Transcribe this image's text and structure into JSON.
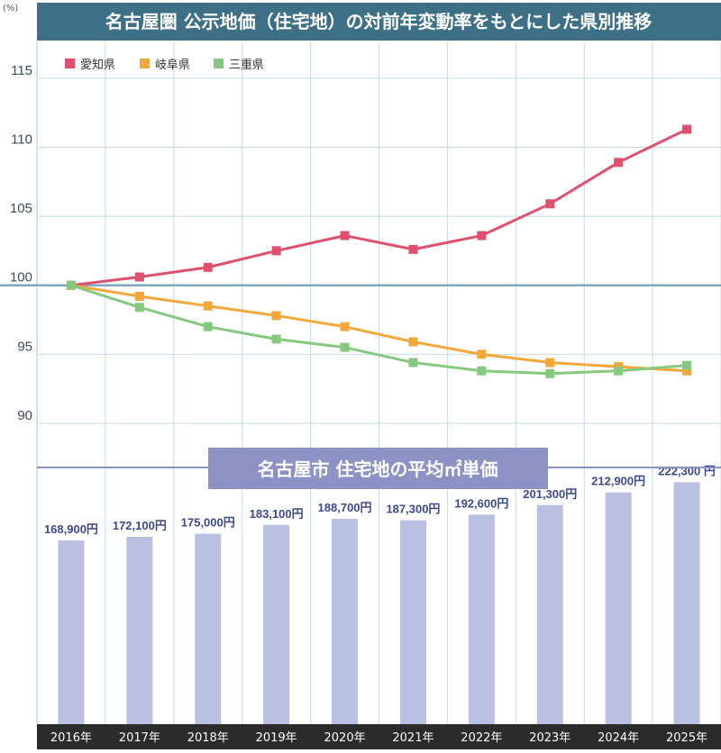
{
  "title": "名古屋圏 公示地価（住宅地）の対前年変動率をもとにした県別推移",
  "unit_label": "(%)",
  "subtitle": "名古屋市 住宅地の平均㎡単価",
  "x_labels": [
    "2016年",
    "2017年",
    "2018年",
    "2019年",
    "2020年",
    "2021年",
    "2022年",
    "2023年",
    "2024年",
    "2025年"
  ],
  "colors": {
    "title_bg": "#3d6f86",
    "subtitle_bg": "#8c93c4",
    "bar": "#b9c0e1",
    "axis_bar": "#2b2b2b",
    "grid_v": "#c5dce3",
    "grid_h": "#c5dce3",
    "baseline": "#7ea8bd",
    "divider": "#8c93c4"
  },
  "chart_data": [
    {
      "type": "line",
      "x": [
        "2016年",
        "2017年",
        "2018年",
        "2019年",
        "2020年",
        "2021年",
        "2022年",
        "2023年",
        "2024年",
        "2025年"
      ],
      "y_ticks": [
        90,
        95,
        100,
        105,
        110,
        115
      ],
      "ylim": [
        86.8,
        117.6
      ],
      "ylabel": "(%)",
      "legend": "top-left",
      "grid": true,
      "series": [
        {
          "name": "愛知県",
          "color": "#e0506e",
          "values": [
            100,
            100.6,
            101.3,
            102.5,
            103.6,
            102.6,
            103.6,
            105.9,
            108.9,
            111.3
          ]
        },
        {
          "name": "岐阜県",
          "color": "#f4a83a",
          "values": [
            100,
            99.2,
            98.5,
            97.8,
            97.0,
            95.9,
            95.0,
            94.4,
            94.1,
            93.8
          ]
        },
        {
          "name": "三重県",
          "color": "#85c97f",
          "values": [
            100,
            98.4,
            97.0,
            96.1,
            95.5,
            94.4,
            93.8,
            93.6,
            93.8,
            94.2
          ]
        }
      ]
    },
    {
      "type": "bar",
      "title": "名古屋市 住宅地の平均㎡単価",
      "categories": [
        "2016年",
        "2017年",
        "2018年",
        "2019年",
        "2020年",
        "2021年",
        "2022年",
        "2023年",
        "2024年",
        "2025年"
      ],
      "values": [
        168900,
        172100,
        175000,
        183100,
        188700,
        187300,
        192600,
        201300,
        212900,
        222300
      ],
      "labels": [
        "168,900円",
        "172,100円",
        "175,000円",
        "183,100円",
        "188,700円",
        "187,300円",
        "192,600円",
        "201,300円",
        "212,900円",
        "222,300 円"
      ]
    }
  ]
}
